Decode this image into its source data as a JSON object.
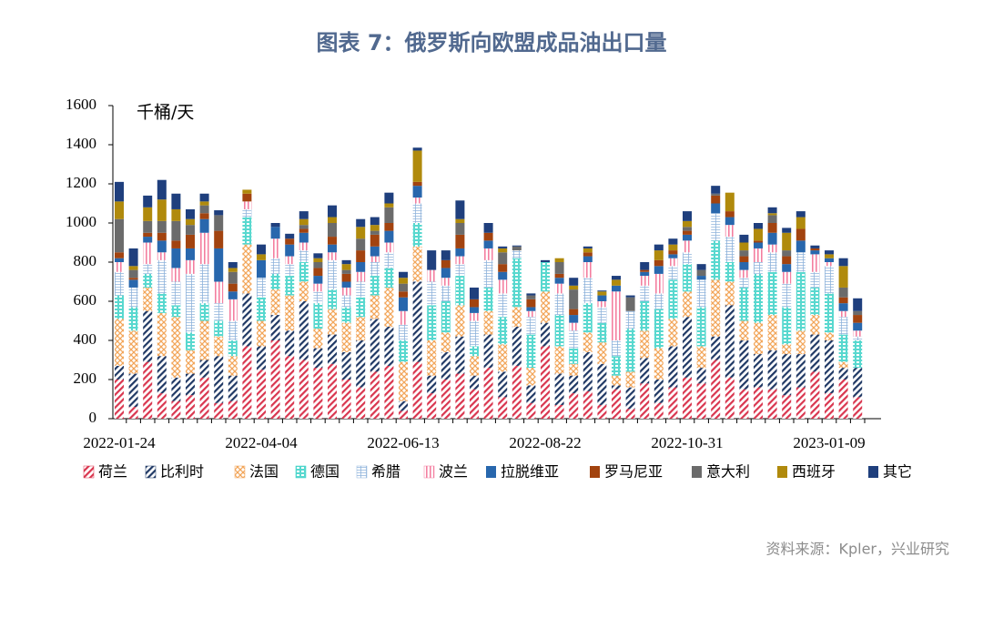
{
  "chart_data": {
    "type": "bar",
    "stacked": true,
    "title": "图表 7：俄罗斯向欧盟成品油出口量",
    "y_label": "千桶/天",
    "source": "资料来源：Kpler，兴业研究",
    "categories": [
      "2022-01-24",
      null,
      null,
      null,
      null,
      null,
      null,
      null,
      null,
      null,
      "2022-04-04",
      null,
      null,
      null,
      null,
      null,
      null,
      null,
      null,
      null,
      "2022-06-13",
      null,
      null,
      null,
      null,
      null,
      null,
      null,
      null,
      null,
      "2022-08-22",
      null,
      null,
      null,
      null,
      null,
      null,
      null,
      null,
      null,
      "2022-10-31",
      null,
      null,
      null,
      null,
      null,
      null,
      null,
      null,
      null,
      "2023-01-09",
      null,
      null
    ],
    "ylim": [
      0,
      1600
    ],
    "yticks": [
      0,
      200,
      400,
      600,
      800,
      1000,
      1200,
      1400,
      1600
    ],
    "series": [
      {
        "name": "荷兰",
        "color": "#d9364f",
        "values": [
          200,
          60,
          290,
          130,
          90,
          120,
          210,
          80,
          90,
          370,
          250,
          400,
          320,
          300,
          260,
          280,
          200,
          160,
          240,
          270,
          40,
          290,
          130,
          200,
          230,
          150,
          260,
          110,
          270,
          80,
          370,
          70,
          130,
          140,
          70,
          150,
          50,
          180,
          80,
          160,
          210,
          180,
          300,
          210,
          150,
          160,
          150,
          120,
          160,
          240,
          130,
          200,
          110
        ]
      },
      {
        "name": "比利时",
        "color": "#1f3864",
        "values": [
          70,
          170,
          260,
          190,
          120,
          110,
          90,
          240,
          130,
          270,
          120,
          130,
          130,
          300,
          100,
          150,
          140,
          240,
          270,
          200,
          50,
          410,
          90,
          140,
          190,
          70,
          170,
          130,
          200,
          90,
          120,
          160,
          90,
          200,
          210,
          20,
          110,
          130,
          120,
          210,
          310,
          80,
          120,
          370,
          250,
          170,
          200,
          210,
          170,
          190,
          270,
          60,
          150
        ]
      },
      {
        "name": "法国",
        "color": "#f2a65a",
        "values": [
          240,
          220,
          120,
          220,
          310,
          120,
          200,
          100,
          100,
          250,
          130,
          130,
          180,
          100,
          100,
          130,
          150,
          120,
          120,
          200,
          200,
          180,
          180,
          100,
          160,
          100,
          120,
          140,
          100,
          90,
          160,
          140,
          60,
          100,
          110,
          50,
          80,
          140,
          160,
          140,
          130,
          110,
          290,
          120,
          100,
          160,
          180,
          50,
          120,
          100,
          40,
          30,
          0
        ]
      },
      {
        "name": "德国",
        "color": "#2fcfc4",
        "values": [
          120,
          120,
          70,
          100,
          60,
          90,
          90,
          80,
          80,
          140,
          120,
          80,
          100,
          100,
          130,
          100,
          80,
          100,
          100,
          100,
          110,
          120,
          180,
          160,
          150,
          50,
          120,
          140,
          250,
          170,
          150,
          160,
          80,
          150,
          100,
          100,
          220,
          150,
          200,
          200,
          140,
          200,
          200,
          100,
          170,
          250,
          220,
          190,
          300,
          140,
          200,
          140,
          140
        ]
      },
      {
        "name": "希腊",
        "color": "#8fb4dc",
        "values": [
          120,
          100,
          50,
          170,
          120,
          300,
          200,
          90,
          100,
          40,
          100,
          80,
          60,
          60,
          60,
          150,
          60,
          80,
          70,
          80,
          80,
          100,
          120,
          80,
          60,
          130,
          140,
          120,
          40,
          90,
          0,
          110,
          90,
          130,
          80,
          80,
          90,
          80,
          80,
          70,
          60,
          140,
          140,
          130,
          50,
          60,
          100,
          120,
          100,
          80,
          140,
          90,
          20
        ]
      },
      {
        "name": "波兰",
        "color": "#f47fa0",
        "values": [
          50,
          0,
          110,
          40,
          70,
          70,
          160,
          110,
          110,
          40,
          0,
          100,
          40,
          40,
          40,
          40,
          40,
          50,
          30,
          50,
          70,
          30,
          60,
          40,
          40,
          40,
          60,
          70,
          0,
          30,
          0,
          50,
          40,
          80,
          30,
          250,
          0,
          50,
          100,
          40,
          60,
          0,
          0,
          60,
          40,
          70,
          40,
          60,
          0,
          90,
          20,
          30,
          30
        ]
      },
      {
        "name": "拉脱维亚",
        "color": "#2867ad",
        "values": [
          20,
          40,
          30,
          60,
          100,
          60,
          70,
          170,
          40,
          0,
          90,
          60,
          60,
          50,
          40,
          40,
          30,
          50,
          50,
          60,
          70,
          60,
          0,
          50,
          40,
          30,
          40,
          40,
          0,
          20,
          0,
          30,
          40,
          30,
          30,
          30,
          0,
          20,
          40,
          20,
          30,
          20,
          50,
          40,
          40,
          30,
          60,
          40,
          60,
          20,
          20,
          40,
          40
        ]
      },
      {
        "name": "罗马尼亚",
        "color": "#a2430f",
        "values": [
          30,
          10,
          20,
          40,
          40,
          70,
          30,
          90,
          40,
          40,
          0,
          0,
          30,
          20,
          40,
          40,
          40,
          60,
          60,
          40,
          30,
          20,
          0,
          40,
          70,
          40,
          40,
          40,
          0,
          40,
          0,
          20,
          30,
          20,
          0,
          0,
          0,
          10,
          30,
          20,
          20,
          0,
          40,
          30,
          30,
          10,
          50,
          40,
          60,
          10,
          0,
          30,
          40
        ]
      },
      {
        "name": "意大利",
        "color": "#6b6b6b",
        "values": [
          170,
          40,
          60,
          60,
          100,
          50,
          40,
          80,
          60,
          0,
          0,
          0,
          0,
          20,
          30,
          70,
          20,
          60,
          20,
          80,
          40,
          0,
          0,
          0,
          60,
          0,
          0,
          60,
          20,
          20,
          0,
          60,
          100,
          0,
          0,
          0,
          70,
          0,
          0,
          0,
          20,
          30,
          10,
          0,
          30,
          0,
          40,
          30,
          0,
          0,
          0,
          50,
          20
        ]
      },
      {
        "name": "西班牙",
        "color": "#b08a0c",
        "values": [
          90,
          20,
          70,
          110,
          60,
          30,
          20,
          0,
          20,
          20,
          30,
          0,
          0,
          30,
          20,
          30,
          30,
          60,
          30,
          20,
          30,
          160,
          0,
          0,
          20,
          0,
          0,
          20,
          0,
          0,
          0,
          20,
          20,
          20,
          20,
          30,
          0,
          0,
          50,
          30,
          30,
          0,
          0,
          95,
          40,
          60,
          10,
          90,
          60,
          0,
          20,
          110,
          0
        ]
      },
      {
        "name": "其它",
        "color": "#1f3f7d",
        "values": [
          100,
          90,
          60,
          100,
          80,
          50,
          40,
          25,
          30,
          0,
          50,
          20,
          25,
          40,
          25,
          60,
          20,
          40,
          40,
          55,
          30,
          15,
          100,
          50,
          95,
          60,
          50,
          10,
          5,
          10,
          10,
          0,
          40,
          10,
          5,
          20,
          10,
          40,
          30,
          30,
          50,
          30,
          40,
          0,
          40,
          30,
          30,
          25,
          30,
          15,
          20,
          40,
          65
        ]
      }
    ]
  }
}
